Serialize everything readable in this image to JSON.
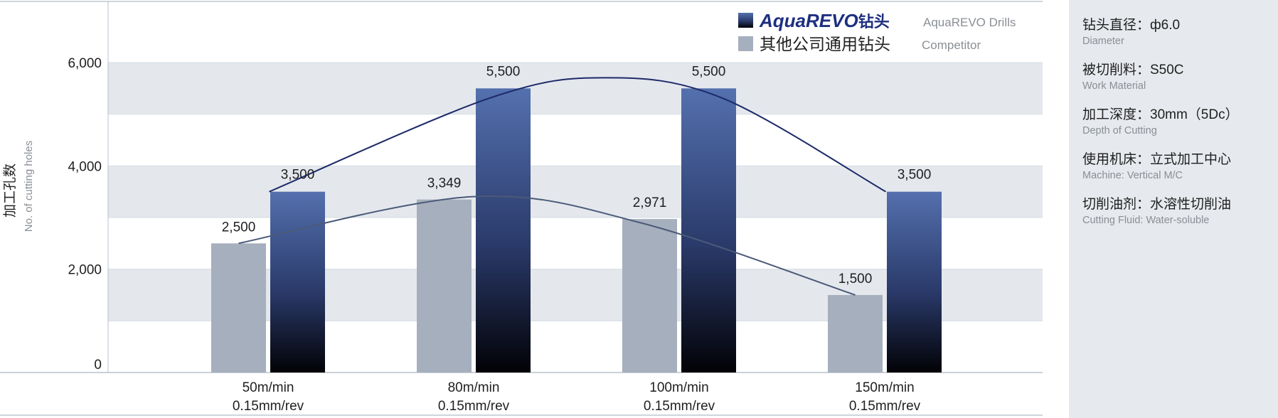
{
  "chart_data": {
    "type": "bar",
    "ylabel": "加工孔数",
    "ylabel_en": "No. of cutting holes",
    "ylim": [
      0,
      6000
    ],
    "yticks": [
      "0",
      "2,000",
      "4,000",
      "6,000"
    ],
    "categories": [
      [
        "50m/min",
        "0.15mm/rev"
      ],
      [
        "80m/min",
        "0.15mm/rev"
      ],
      [
        "100m/min",
        "0.15mm/rev"
      ],
      [
        "150m/min",
        "0.15mm/rev"
      ]
    ],
    "series": [
      {
        "name": "其他公司通用钻头",
        "name_en": "Competitor",
        "values": [
          2500,
          3349,
          2971,
          1500
        ],
        "labels": [
          "2,500",
          "3,349",
          "2,971",
          "1,500"
        ],
        "color": "#a6afbd"
      },
      {
        "name": "AquaREVO钻头",
        "name_en": "AquaREVO Drills",
        "values": [
          3500,
          5500,
          5500,
          3500
        ],
        "labels": [
          "3,500",
          "5,500",
          "5,500",
          "3,500"
        ],
        "color_top": "#5470ae",
        "color_bottom": "#020206"
      }
    ],
    "legend_position": "top-right",
    "grid": true,
    "trend_lines": true
  },
  "legend": {
    "brand_prefix": "AquaREVO",
    "brand_suffix": "钻头"
  },
  "specs": [
    {
      "label": "钻头直径：ф6.0",
      "sub": "Diameter"
    },
    {
      "label": "被切削料：S50C",
      "sub": "Work Material"
    },
    {
      "label": "加工深度：30mm（5Dc）",
      "sub": "Depth of Cutting"
    },
    {
      "label": "使用机床：立式加工中心",
      "sub": "Machine: Vertical M/C"
    },
    {
      "label": "切削油剂：水溶性切削油",
      "sub": "Cutting Fluid: Water-soluble"
    }
  ]
}
